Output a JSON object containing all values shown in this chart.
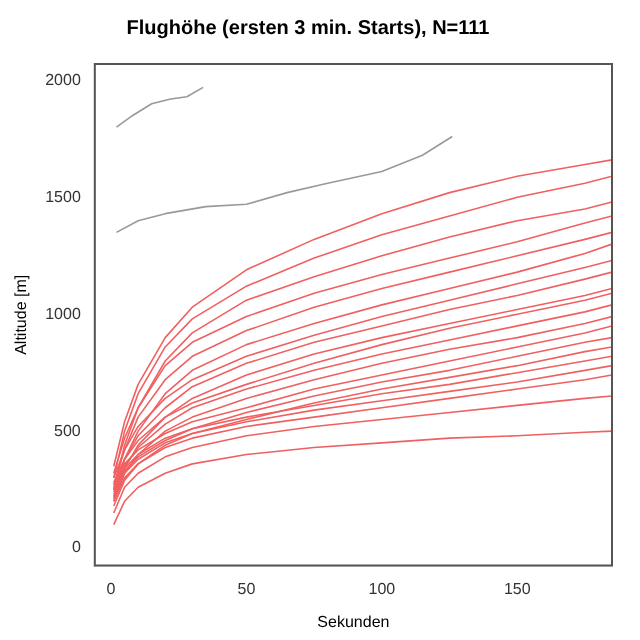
{
  "chart_data": {
    "type": "line",
    "title": "Flughöhe (ersten 3 min. Starts), N=111",
    "xlabel": "Sekunden",
    "ylabel": "Altitude [m]",
    "x": [
      1,
      5,
      10,
      20,
      30,
      50,
      75,
      100,
      125,
      150,
      175,
      185
    ],
    "xlim": [
      -6,
      185
    ],
    "xticks": [
      0,
      50,
      100,
      150
    ],
    "ylim": [
      -75,
      2070
    ],
    "yticks": [
      0,
      500,
      1000,
      1500,
      2000
    ],
    "grid": false,
    "legend": false,
    "marker": "none",
    "line_style": "solid",
    "series": [
      {
        "color": "#999999",
        "x": [
          2,
          8,
          15,
          22,
          28,
          34
        ],
        "values": [
          1800,
          1850,
          1900,
          1920,
          1930,
          1970
        ]
      },
      {
        "color": "#999999",
        "x": [
          2,
          10,
          20,
          35,
          50,
          65,
          80,
          100,
          115,
          126
        ],
        "values": [
          1350,
          1400,
          1430,
          1460,
          1470,
          1520,
          1560,
          1610,
          1680,
          1760
        ]
      },
      {
        "color": "#f06060",
        "values": [
          100,
          200,
          260,
          320,
          360,
          400,
          430,
          450,
          470,
          480,
          495,
          500
        ]
      },
      {
        "color": "#f06060",
        "values": [
          150,
          260,
          320,
          390,
          430,
          480,
          520,
          550,
          580,
          610,
          640,
          650
        ]
      },
      {
        "color": "#f06060",
        "values": [
          200,
          300,
          360,
          430,
          470,
          520,
          560,
          600,
          640,
          680,
          720,
          740
        ]
      },
      {
        "color": "#f06060",
        "values": [
          220,
          320,
          380,
          450,
          490,
          540,
          590,
          630,
          670,
          710,
          760,
          780
        ]
      },
      {
        "color": "#f06060",
        "values": [
          250,
          340,
          400,
          470,
          510,
          560,
          610,
          660,
          700,
          750,
          800,
          820
        ]
      },
      {
        "color": "#f06060",
        "values": [
          180,
          290,
          360,
          440,
          490,
          550,
          620,
          680,
          730,
          780,
          840,
          860
        ]
      },
      {
        "color": "#f06060",
        "values": [
          230,
          330,
          390,
          460,
          510,
          580,
          650,
          710,
          760,
          820,
          880,
          900
        ]
      },
      {
        "color": "#f06060",
        "values": [
          260,
          360,
          420,
          490,
          540,
          600,
          680,
          740,
          800,
          860,
          920,
          950
        ]
      },
      {
        "color": "#f06060",
        "values": [
          200,
          320,
          400,
          500,
          560,
          640,
          720,
          790,
          850,
          900,
          960,
          990
        ]
      },
      {
        "color": "#f06060",
        "values": [
          240,
          350,
          430,
          530,
          600,
          680,
          760,
          830,
          890,
          950,
          1010,
          1040
        ]
      },
      {
        "color": "#f06060",
        "values": [
          280,
          380,
          460,
          560,
          620,
          700,
          790,
          870,
          940,
          1000,
          1060,
          1090
        ]
      },
      {
        "color": "#f06060",
        "values": [
          210,
          340,
          440,
          560,
          640,
          740,
          830,
          900,
          960,
          1020,
          1080,
          1110
        ]
      },
      {
        "color": "#f06060",
        "values": [
          250,
          380,
          480,
          600,
          690,
          790,
          880,
          950,
          1020,
          1080,
          1150,
          1180
        ]
      },
      {
        "color": "#f06060",
        "values": [
          300,
          420,
          520,
          640,
          720,
          820,
          910,
          990,
          1060,
          1130,
          1200,
          1230
        ]
      },
      {
        "color": "#f06060",
        "values": [
          220,
          380,
          500,
          660,
          760,
          870,
          960,
          1040,
          1110,
          1180,
          1260,
          1300
        ]
      },
      {
        "color": "#f06060",
        "values": [
          270,
          420,
          560,
          720,
          820,
          930,
          1030,
          1110,
          1180,
          1250,
          1320,
          1350
        ]
      },
      {
        "color": "#f06060",
        "values": [
          320,
          470,
          600,
          780,
          880,
          990,
          1090,
          1170,
          1240,
          1310,
          1390,
          1420
        ]
      },
      {
        "color": "#f06060",
        "values": [
          250,
          440,
          600,
          800,
          920,
          1060,
          1160,
          1250,
          1330,
          1400,
          1450,
          1480
        ]
      },
      {
        "color": "#f06060",
        "values": [
          300,
          500,
          660,
          860,
          980,
          1120,
          1240,
          1340,
          1420,
          1500,
          1560,
          1590
        ]
      },
      {
        "color": "#f06060",
        "values": [
          350,
          540,
          700,
          900,
          1030,
          1190,
          1320,
          1430,
          1520,
          1590,
          1640,
          1660
        ]
      }
    ]
  }
}
